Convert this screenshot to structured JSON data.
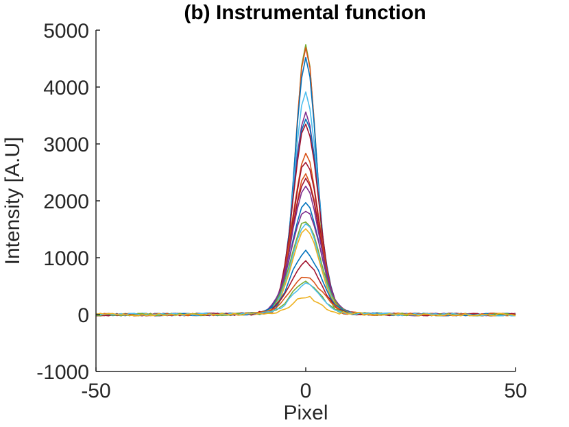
{
  "chart_data": {
    "type": "line",
    "title": "(b) Instrumental function",
    "xlabel": "Pixel",
    "ylabel": "Intensity [A.U]",
    "xlim": [
      -50,
      50
    ],
    "ylim": [
      -1000,
      5000
    ],
    "xticks": [
      -50,
      0,
      50
    ],
    "yticks": [
      -1000,
      0,
      1000,
      2000,
      3000,
      4000,
      5000
    ],
    "xtick_labels": [
      "-50",
      "0",
      "50"
    ],
    "ytick_labels": [
      "-1000",
      "0",
      "1000",
      "2000",
      "3000",
      "4000",
      "5000"
    ],
    "grid": false,
    "legend": "none",
    "peak_x": 0,
    "series": [
      {
        "color": "#77AC30",
        "peak": 4680,
        "width": 2.4
      },
      {
        "color": "#D95319",
        "peak": 4600,
        "width": 2.5
      },
      {
        "color": "#0072BD",
        "peak": 4400,
        "width": 2.6
      },
      {
        "color": "#4DBEEE",
        "peak": 3800,
        "width": 2.8
      },
      {
        "color": "#7E2F8E",
        "peak": 3450,
        "width": 2.9
      },
      {
        "color": "#0072BD",
        "peak": 3350,
        "width": 3.0
      },
      {
        "color": "#A2142F",
        "peak": 3250,
        "width": 3.0
      },
      {
        "color": "#D95319",
        "peak": 2700,
        "width": 3.1
      },
      {
        "color": "#A2142F",
        "peak": 2600,
        "width": 3.1
      },
      {
        "color": "#D95319",
        "peak": 2350,
        "width": 3.2
      },
      {
        "color": "#A2142F",
        "peak": 2300,
        "width": 3.2
      },
      {
        "color": "#7E2F8E",
        "peak": 2150,
        "width": 3.3
      },
      {
        "color": "#0072BD",
        "peak": 1850,
        "width": 3.4
      },
      {
        "color": "#7E2F8E",
        "peak": 1750,
        "width": 3.5
      },
      {
        "color": "#77AC30",
        "peak": 1550,
        "width": 3.4
      },
      {
        "color": "#4DBEEE",
        "peak": 1500,
        "width": 3.3
      },
      {
        "color": "#EDB120",
        "peak": 1400,
        "width": 3.3
      },
      {
        "color": "#0072BD",
        "peak": 1000,
        "width": 3.5
      },
      {
        "color": "#A2142F",
        "peak": 820,
        "width": 3.6
      },
      {
        "color": "#D95319",
        "peak": 580,
        "width": 3.8
      },
      {
        "color": "#77AC30",
        "peak": 480,
        "width": 3.5
      },
      {
        "color": "#4DBEEE",
        "peak": 450,
        "width": 3.3
      },
      {
        "color": "#EDB120",
        "peak": 230,
        "width": 3.0
      }
    ]
  }
}
